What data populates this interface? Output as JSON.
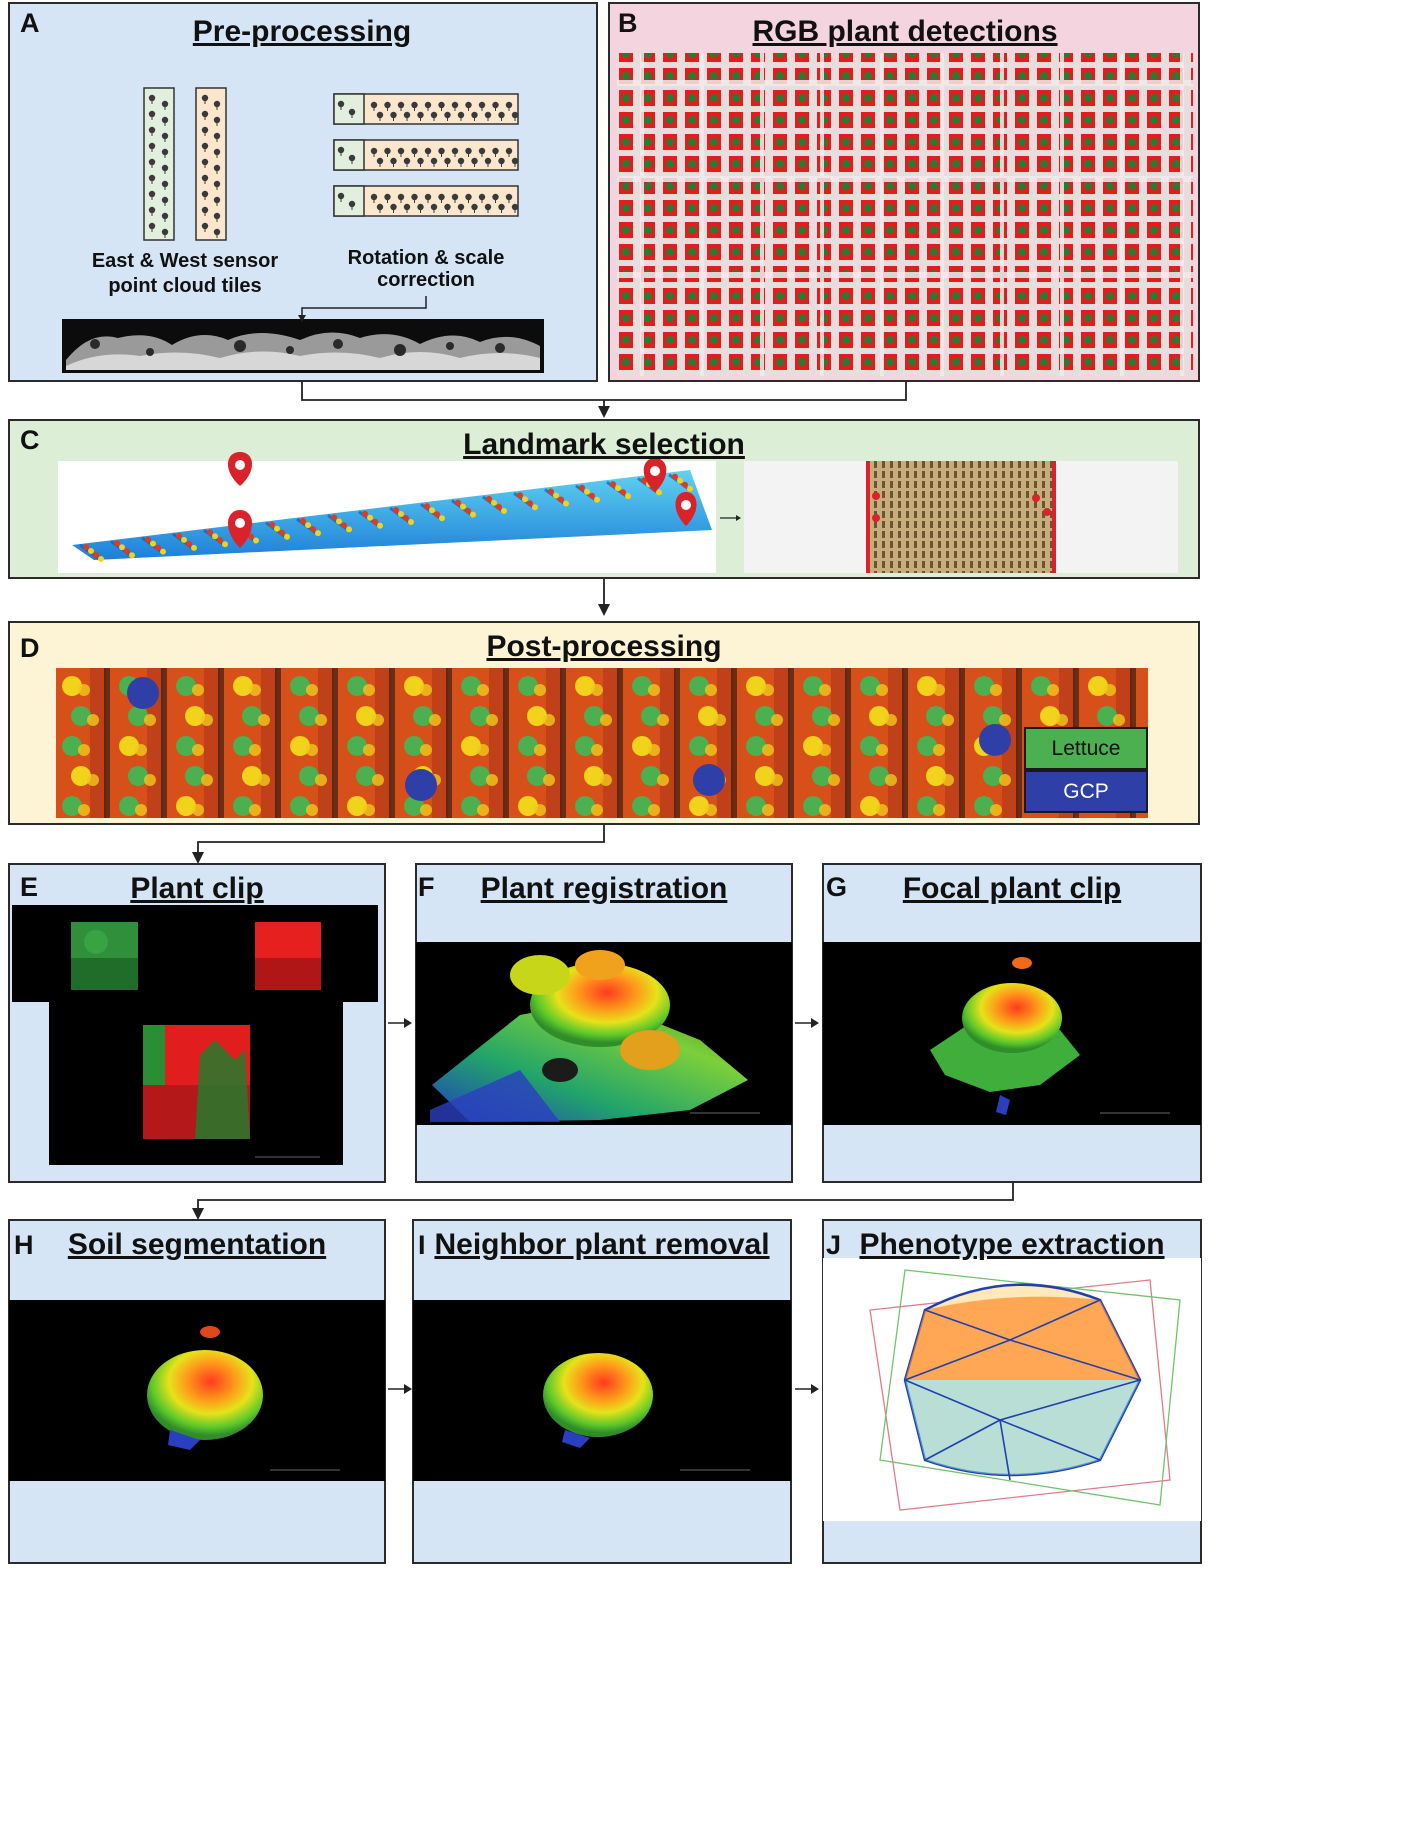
{
  "panels": {
    "A": {
      "letter": "A",
      "title": "Pre-processing",
      "caption_left_1": "East & West sensor",
      "caption_left_2": "point cloud tiles",
      "caption_right_1": "Rotation & scale",
      "caption_right_2": "correction"
    },
    "B": {
      "letter": "B",
      "title": "RGB plant detections"
    },
    "C": {
      "letter": "C",
      "title": "Landmark selection"
    },
    "D": {
      "letter": "D",
      "title": "Post-processing",
      "legend": [
        {
          "label": "Lettuce",
          "color": "#4caf50"
        },
        {
          "label": "GCP",
          "color": "#2e3fa8"
        }
      ]
    },
    "E": {
      "letter": "E",
      "title": "Plant clip"
    },
    "F": {
      "letter": "F",
      "title": "Plant registration"
    },
    "G": {
      "letter": "G",
      "title": "Focal plant clip"
    },
    "H": {
      "letter": "H",
      "title": "Soil segmentation"
    },
    "I": {
      "letter": "I",
      "title": "Neighbor plant removal"
    },
    "J": {
      "letter": "J",
      "title": "Phenotype extraction"
    }
  },
  "colors": {
    "panel_blue": "#d6e5f5",
    "panel_pink": "#f4d4df",
    "panel_green": "#dcefd6",
    "panel_cream": "#fcf4d4",
    "detection_red": "#e11d1d",
    "plant_green": "#4caf50",
    "gcp_blue": "#2e3fa8"
  }
}
